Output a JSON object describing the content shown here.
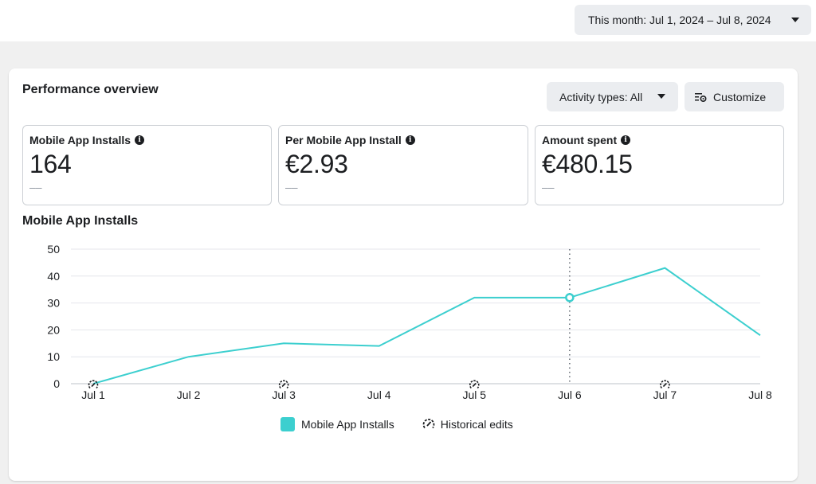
{
  "header": {
    "date_range_label": "This month: Jul 1, 2024 – Jul 8, 2024"
  },
  "card": {
    "title": "Performance overview",
    "activity_label": "Activity types: All",
    "customize_label": "Customize"
  },
  "metrics": [
    {
      "label": "Mobile App Installs",
      "value": "164",
      "sub": "––"
    },
    {
      "label": "Per Mobile App Install",
      "value": "€2.93",
      "sub": "––"
    },
    {
      "label": "Amount spent",
      "value": "€480.15",
      "sub": "––"
    }
  ],
  "chart_title": "Mobile App Installs",
  "chart_data": {
    "type": "line",
    "categories": [
      "Jul 1",
      "Jul 2",
      "Jul 3",
      "Jul 4",
      "Jul 5",
      "Jul 6",
      "Jul 7",
      "Jul 8"
    ],
    "series": [
      {
        "name": "Mobile App Installs",
        "values": [
          0,
          10,
          15,
          14,
          32,
          32,
          43,
          18
        ],
        "color": "#3ccfcf"
      }
    ],
    "yticks": [
      0,
      10,
      20,
      30,
      40,
      50
    ],
    "ylim": [
      0,
      50
    ],
    "highlighted_category": "Jul 6",
    "historical_edit_categories": [
      "Jul 1",
      "Jul 3",
      "Jul 5",
      "Jul 7"
    ],
    "grid": true,
    "legend_position": "bottom-center"
  },
  "legend": {
    "series_label": "Mobile App Installs",
    "history_label": "Historical edits"
  },
  "colors": {
    "accent": "#3ccfcf",
    "grid": "#e4e6eb",
    "text": "#1c1e21"
  }
}
